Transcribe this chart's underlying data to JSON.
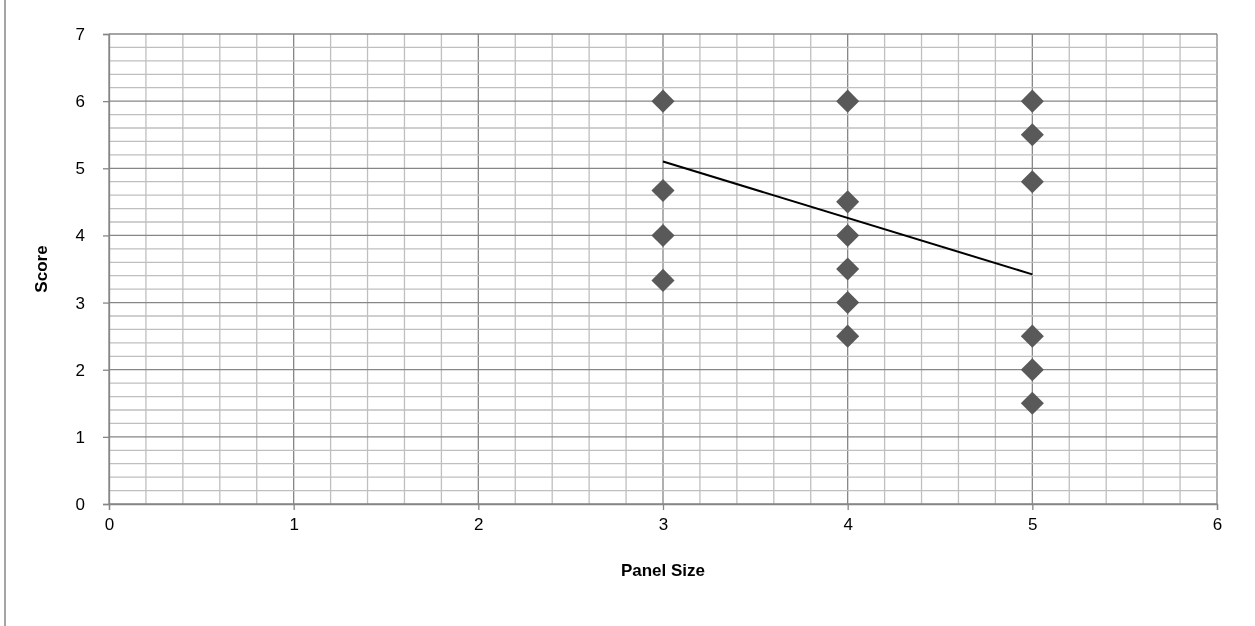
{
  "chart_data": {
    "type": "scatter",
    "xlabel": "Panel Size",
    "ylabel": "Score",
    "xlim": [
      0,
      6
    ],
    "xticks": [
      0,
      1,
      2,
      3,
      4,
      5,
      6
    ],
    "ylim": [
      0,
      7
    ],
    "yticks": [
      0,
      1,
      2,
      3,
      4,
      5,
      6,
      7
    ],
    "grid": true,
    "series": [
      {
        "marker": "diamond",
        "color": "#595959",
        "x": [
          3,
          3,
          3,
          3,
          4,
          4,
          4,
          4,
          4,
          4,
          5,
          5,
          5,
          5,
          5,
          5
        ],
        "values": [
          6,
          4.67,
          4,
          3.33,
          6,
          4.5,
          4,
          3.5,
          3,
          2.5,
          6,
          5.5,
          4.8,
          2.5,
          2,
          1.5
        ]
      },
      {
        "type": "line",
        "marker": "none",
        "color": "#000000",
        "x": [
          3,
          5
        ],
        "values": [
          5.1,
          3.42
        ]
      }
    ]
  }
}
